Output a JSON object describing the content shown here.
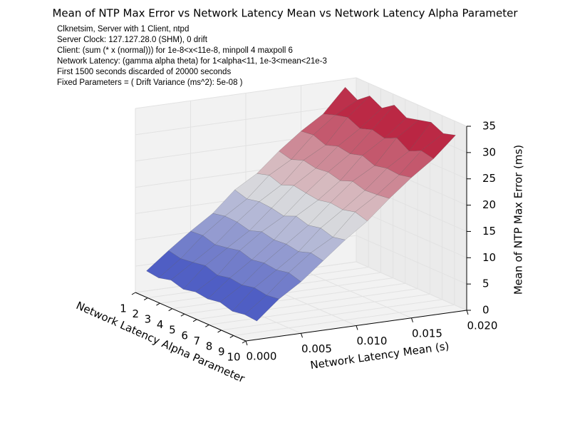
{
  "chart_data": {
    "type": "surface",
    "title": "Mean of NTP Max Error vs Network Latency Mean vs Network Latency Alpha Parameter",
    "annotations": [
      "Clknetsim, Server with 1 Client, ntpd",
      "Server Clock: 127.127.28.0 (SHM), 0 drift",
      "Client: (sum (* x (normal))) for 1e-8<x<11e-8, minpoll 4 maxpoll 6",
      "Network Latency: (gamma alpha theta) for 1<alpha<11, 1e-3<mean<21e-3",
      "First 1500 seconds discarded of 20000 seconds",
      "Fixed Parameters = ( Drift Variance (ms^2): 5e-08 )"
    ],
    "xlabel": "Network Latency Alpha Parameter",
    "ylabel": "Network Latency Mean (s)",
    "zlabel": "Mean of NTP Max Error (ms)",
    "x": [
      1,
      2,
      3,
      4,
      5,
      6,
      7,
      8,
      9,
      10
    ],
    "y": [
      0.001,
      0.003,
      0.005,
      0.007,
      0.009,
      0.011,
      0.013,
      0.015,
      0.017,
      0.019
    ],
    "z": [
      [
        3.8,
        7.1,
        10.2,
        13.0,
        16.9,
        19.4,
        23.1,
        26.3,
        29.0,
        33.5
      ],
      [
        3.5,
        6.6,
        10.4,
        13.5,
        16.2,
        20.1,
        22.5,
        26.6,
        29.8,
        32.1
      ],
      [
        4.1,
        6.9,
        9.7,
        13.4,
        16.7,
        19.3,
        23.4,
        25.7,
        30.4,
        33.9
      ],
      [
        3.4,
        7.3,
        10.1,
        12.8,
        16.5,
        20.2,
        22.9,
        26.5,
        29.3,
        32.6
      ],
      [
        3.9,
        6.5,
        10.6,
        13.6,
        16.0,
        19.8,
        23.2,
        26.1,
        30.1,
        34.2
      ],
      [
        3.6,
        7.0,
        9.9,
        13.1,
        17.0,
        19.5,
        22.6,
        26.8,
        29.5,
        32.8
      ],
      [
        4.0,
        6.7,
        10.3,
        13.3,
        16.3,
        20.0,
        23.5,
        25.9,
        30.6,
        33.4
      ],
      [
        3.3,
        7.2,
        10.0,
        12.9,
        16.8,
        19.7,
        22.8,
        26.4,
        29.1,
        34.0
      ],
      [
        3.7,
        6.8,
        10.5,
        13.7,
        16.1,
        20.3,
        23.0,
        26.2,
        30.2,
        32.9
      ],
      [
        3.5,
        7.1,
        9.8,
        13.2,
        16.6,
        19.6,
        23.3,
        26.7,
        29.7,
        33.6
      ]
    ],
    "xlim": [
      1,
      10
    ],
    "ylim": [
      0,
      0.02
    ],
    "zlim": [
      0,
      35
    ],
    "xticks": [
      1,
      2,
      3,
      4,
      5,
      6,
      7,
      8,
      9,
      10
    ],
    "yticks": [
      {
        "value": 0,
        "label": "0.000"
      },
      {
        "value": 0.005,
        "label": "0.005"
      },
      {
        "value": 0.01,
        "label": "0.010"
      },
      {
        "value": 0.015,
        "label": "0.015"
      },
      {
        "value": 0.02,
        "label": "0.020"
      }
    ],
    "zticks": [
      0,
      5,
      10,
      15,
      20,
      25,
      30,
      35
    ],
    "colormap": "coolwarm",
    "grid": true
  }
}
